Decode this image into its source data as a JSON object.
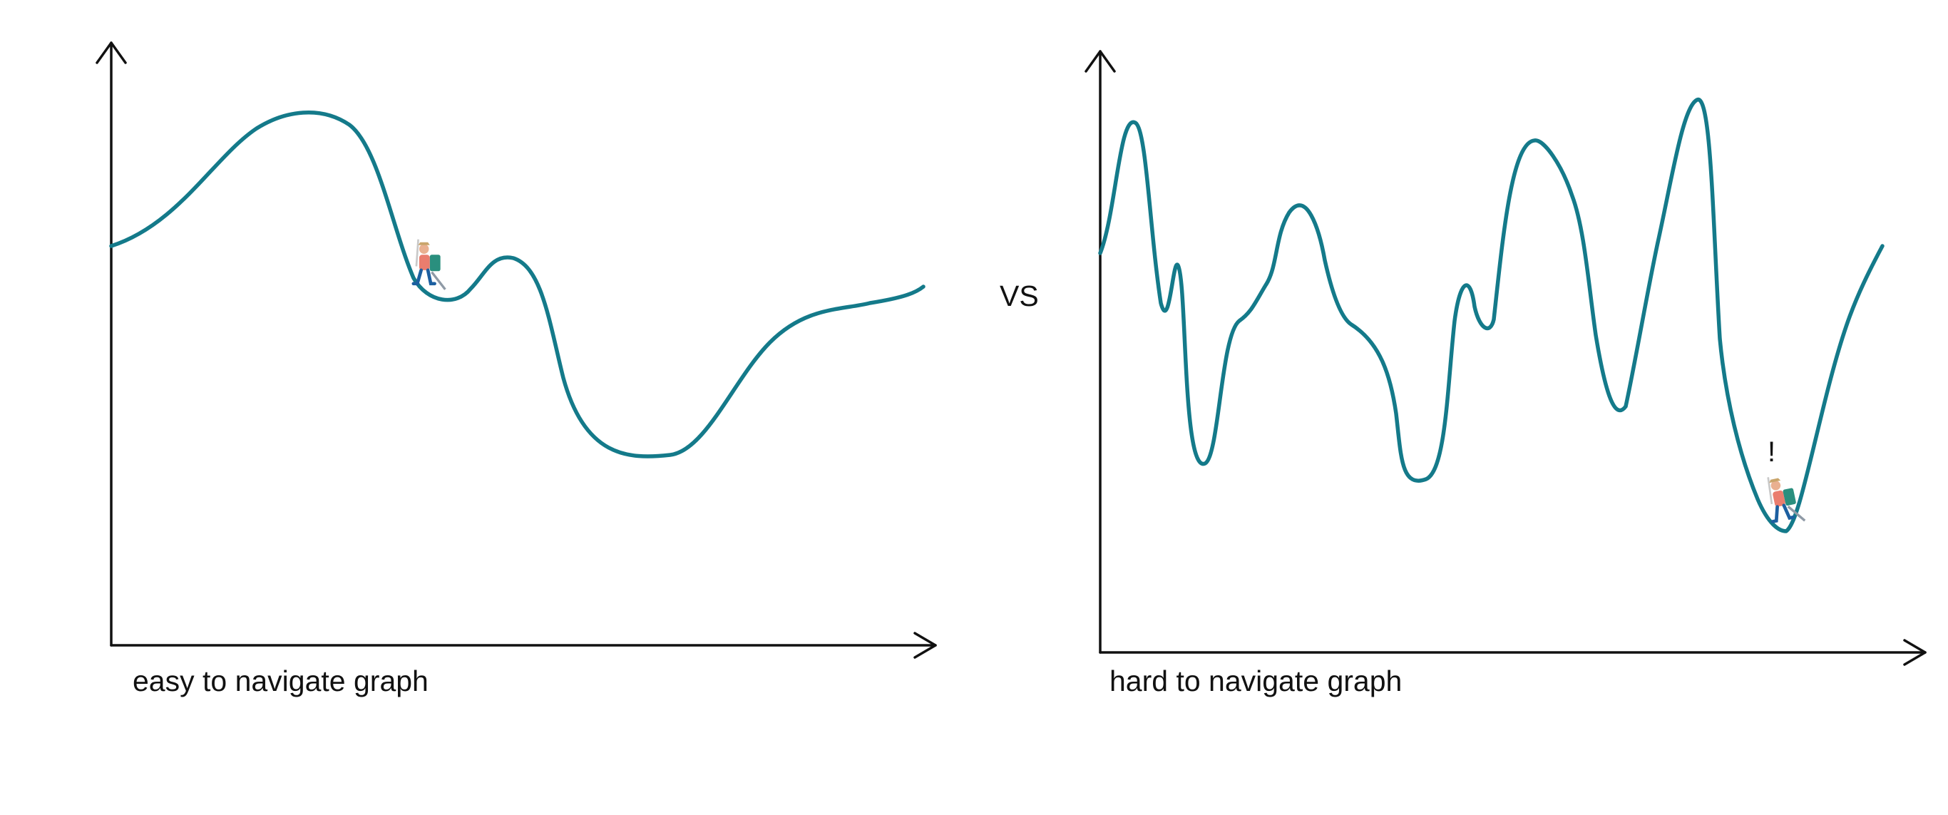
{
  "left_panel": {
    "caption": "easy to navigate graph",
    "icon": "hiker-icon"
  },
  "separator": {
    "text": "VS"
  },
  "right_panel": {
    "caption": "hard to navigate graph",
    "icon": "hiker-icon",
    "alert": "!"
  },
  "colors": {
    "curve": "#147a8a",
    "axis": "#111111"
  }
}
